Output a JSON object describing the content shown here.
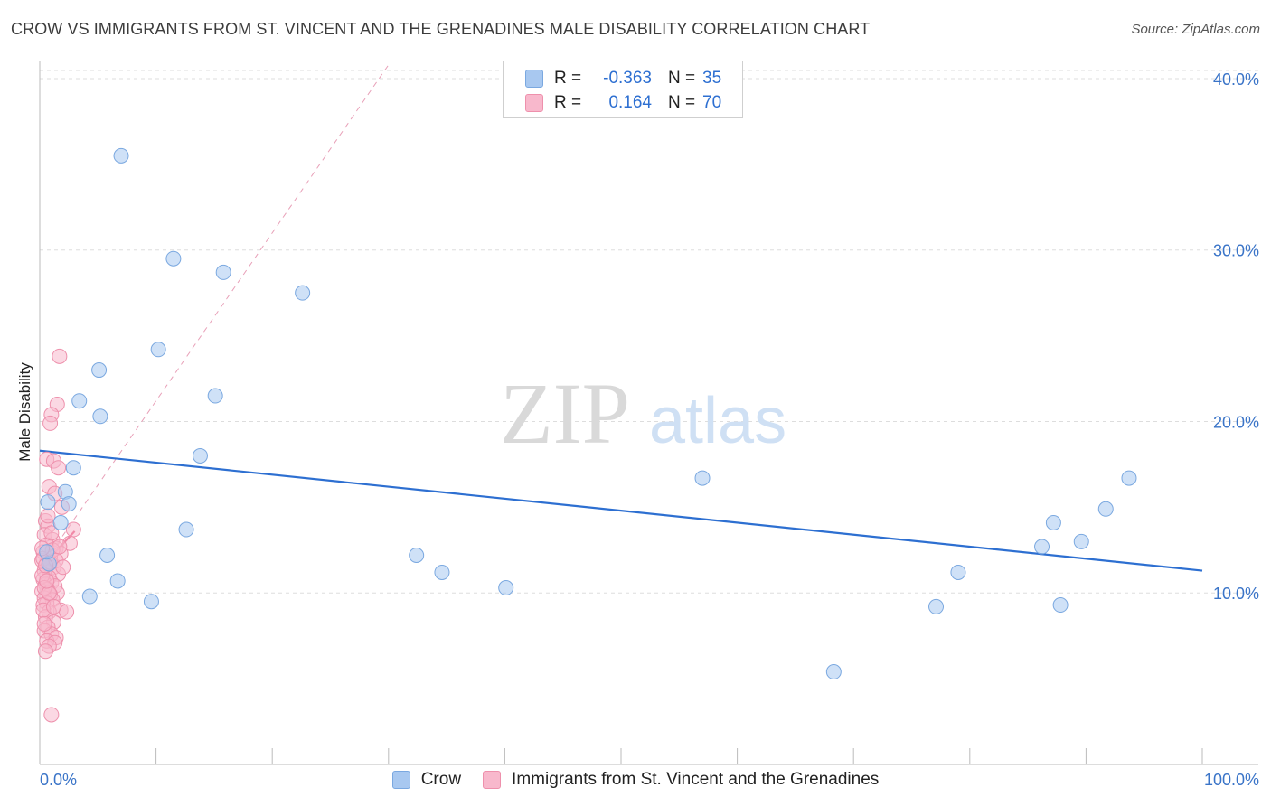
{
  "title": "CROW VS IMMIGRANTS FROM ST. VINCENT AND THE GRENADINES MALE DISABILITY CORRELATION CHART",
  "source": "Source: ZipAtlas.com",
  "watermark": {
    "part1": "ZIP",
    "part2": "atlas"
  },
  "legend": {
    "rows": [
      {
        "r_label": "R =",
        "r_value": "-0.363",
        "n_label": "N =",
        "n_value": "35",
        "color": "#a8c8f0",
        "border": "#7aa8e0"
      },
      {
        "r_label": "R =",
        "r_value": "0.164",
        "n_label": "N =",
        "n_value": "70",
        "color": "#f8b8cc",
        "border": "#ee90ac"
      }
    ]
  },
  "bottom_legend": {
    "crow": "Crow",
    "immigrants": "Immigrants from St. Vincent and the Grenadines"
  },
  "chart_data": {
    "type": "scatter",
    "xlabel": "",
    "ylabel": "Male Disability",
    "xlim": [
      0,
      100
    ],
    "ylim": [
      0,
      41
    ],
    "x_tick_labels": [
      "0.0%",
      "100.0%"
    ],
    "y_ticks": [
      10,
      20,
      30,
      40
    ],
    "y_tick_labels": [
      "10.0%",
      "20.0%",
      "30.0%",
      "40.0%"
    ],
    "grid": true,
    "series": [
      {
        "name": "Crow",
        "color": "#a8c8f0",
        "stroke": "#7aa8e0",
        "trend_color": "#2d6fd1",
        "trend": {
          "x0": 0,
          "y0": 18.3,
          "x1": 100,
          "y1": 11.3
        },
        "points": [
          [
            7.0,
            35.5
          ],
          [
            11.5,
            29.5
          ],
          [
            15.8,
            28.7
          ],
          [
            22.6,
            27.5
          ],
          [
            10.2,
            24.2
          ],
          [
            5.1,
            23.0
          ],
          [
            15.1,
            21.5
          ],
          [
            3.4,
            21.2
          ],
          [
            5.2,
            20.3
          ],
          [
            13.8,
            18.0
          ],
          [
            2.9,
            17.3
          ],
          [
            0.7,
            15.3
          ],
          [
            2.2,
            15.9
          ],
          [
            2.5,
            15.2
          ],
          [
            1.8,
            14.1
          ],
          [
            12.6,
            13.7
          ],
          [
            5.8,
            12.2
          ],
          [
            6.7,
            10.7
          ],
          [
            4.3,
            9.8
          ],
          [
            9.6,
            9.5
          ],
          [
            0.8,
            11.7
          ],
          [
            32.4,
            12.2
          ],
          [
            34.6,
            11.2
          ],
          [
            40.1,
            10.3
          ],
          [
            57.0,
            16.7
          ],
          [
            68.3,
            5.4
          ],
          [
            77.1,
            9.2
          ],
          [
            79.0,
            11.2
          ],
          [
            86.2,
            12.7
          ],
          [
            87.2,
            14.1
          ],
          [
            87.8,
            9.3
          ],
          [
            89.6,
            13.0
          ],
          [
            91.7,
            14.9
          ],
          [
            93.7,
            16.7
          ],
          [
            0.6,
            12.4
          ]
        ]
      },
      {
        "name": "Immigrants from St. Vincent and the Grenadines",
        "color": "#f8b8cc",
        "stroke": "#ee90ac",
        "trend_color": "#e8507a",
        "trend": {
          "x0": 0,
          "y0": 11.4,
          "x1": 3.0,
          "y1": 13.6
        },
        "trend_ext": {
          "x0": 0,
          "y0": 11.4,
          "x1": 30.0,
          "y1": 40.8
        },
        "points": [
          [
            1.7,
            23.8
          ],
          [
            1.5,
            21.0
          ],
          [
            1.0,
            20.4
          ],
          [
            0.9,
            19.9
          ],
          [
            0.6,
            17.8
          ],
          [
            1.2,
            17.7
          ],
          [
            1.6,
            17.3
          ],
          [
            0.8,
            16.2
          ],
          [
            1.3,
            15.8
          ],
          [
            1.9,
            15.0
          ],
          [
            0.5,
            14.2
          ],
          [
            0.7,
            13.9
          ],
          [
            2.9,
            13.7
          ],
          [
            0.4,
            13.4
          ],
          [
            1.1,
            13.1
          ],
          [
            2.6,
            12.9
          ],
          [
            1.4,
            12.6
          ],
          [
            0.3,
            12.4
          ],
          [
            1.8,
            12.3
          ],
          [
            0.9,
            12.1
          ],
          [
            0.2,
            11.9
          ],
          [
            0.6,
            11.7
          ],
          [
            1.2,
            11.5
          ],
          [
            0.4,
            11.3
          ],
          [
            1.6,
            11.1
          ],
          [
            0.8,
            10.9
          ],
          [
            0.3,
            10.8
          ],
          [
            1.0,
            10.6
          ],
          [
            0.5,
            10.5
          ],
          [
            1.3,
            10.4
          ],
          [
            0.7,
            10.2
          ],
          [
            0.2,
            10.1
          ],
          [
            1.5,
            10.0
          ],
          [
            0.9,
            9.9
          ],
          [
            0.4,
            9.7
          ],
          [
            1.1,
            9.6
          ],
          [
            0.6,
            9.4
          ],
          [
            0.3,
            9.3
          ],
          [
            1.8,
            9.0
          ],
          [
            0.8,
            8.9
          ],
          [
            2.3,
            8.9
          ],
          [
            0.5,
            8.6
          ],
          [
            1.2,
            8.3
          ],
          [
            0.7,
            8.0
          ],
          [
            0.4,
            7.8
          ],
          [
            1.0,
            7.6
          ],
          [
            1.4,
            7.4
          ],
          [
            0.6,
            7.2
          ],
          [
            1.3,
            7.1
          ],
          [
            0.8,
            6.9
          ],
          [
            0.5,
            6.6
          ],
          [
            1.0,
            2.9
          ],
          [
            0.3,
            12.0
          ],
          [
            0.2,
            11.0
          ],
          [
            0.4,
            10.3
          ],
          [
            0.6,
            12.8
          ],
          [
            0.9,
            11.8
          ],
          [
            1.1,
            12.5
          ],
          [
            1.4,
            11.9
          ],
          [
            0.3,
            9.0
          ],
          [
            0.7,
            14.5
          ],
          [
            1.0,
            13.5
          ],
          [
            0.2,
            12.6
          ],
          [
            0.5,
            11.6
          ],
          [
            0.8,
            10.0
          ],
          [
            1.2,
            9.2
          ],
          [
            0.4,
            8.2
          ],
          [
            1.7,
            12.7
          ],
          [
            2.0,
            11.5
          ],
          [
            0.6,
            10.7
          ]
        ]
      }
    ]
  }
}
